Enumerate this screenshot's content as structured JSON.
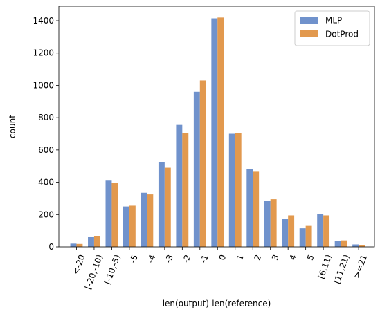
{
  "chart_data": {
    "type": "bar",
    "title": "",
    "xlabel": "len(output)-len(reference)",
    "ylabel": "count",
    "categories": [
      "<-20",
      "[-20,-10)",
      "[-10,-5)",
      "-5",
      "-4",
      "-3",
      "-2",
      "-1",
      "0",
      "1",
      "2",
      "3",
      "4",
      "5",
      "[6,11)",
      "[11,21)",
      ">=21"
    ],
    "series": [
      {
        "name": "MLP",
        "color": "#7092cc",
        "values": [
          20,
          60,
          410,
          250,
          335,
          525,
          755,
          960,
          1415,
          700,
          480,
          285,
          175,
          115,
          205,
          35,
          15
        ]
      },
      {
        "name": "DotProd",
        "color": "#e2994e",
        "values": [
          18,
          65,
          395,
          255,
          325,
          490,
          705,
          1030,
          1420,
          705,
          465,
          295,
          195,
          130,
          195,
          40,
          12
        ]
      }
    ],
    "ylim": [
      0,
      1490
    ],
    "yticks": [
      0,
      200,
      400,
      600,
      800,
      1000,
      1200,
      1400
    ],
    "legend_position": "top-right",
    "grid": false
  }
}
